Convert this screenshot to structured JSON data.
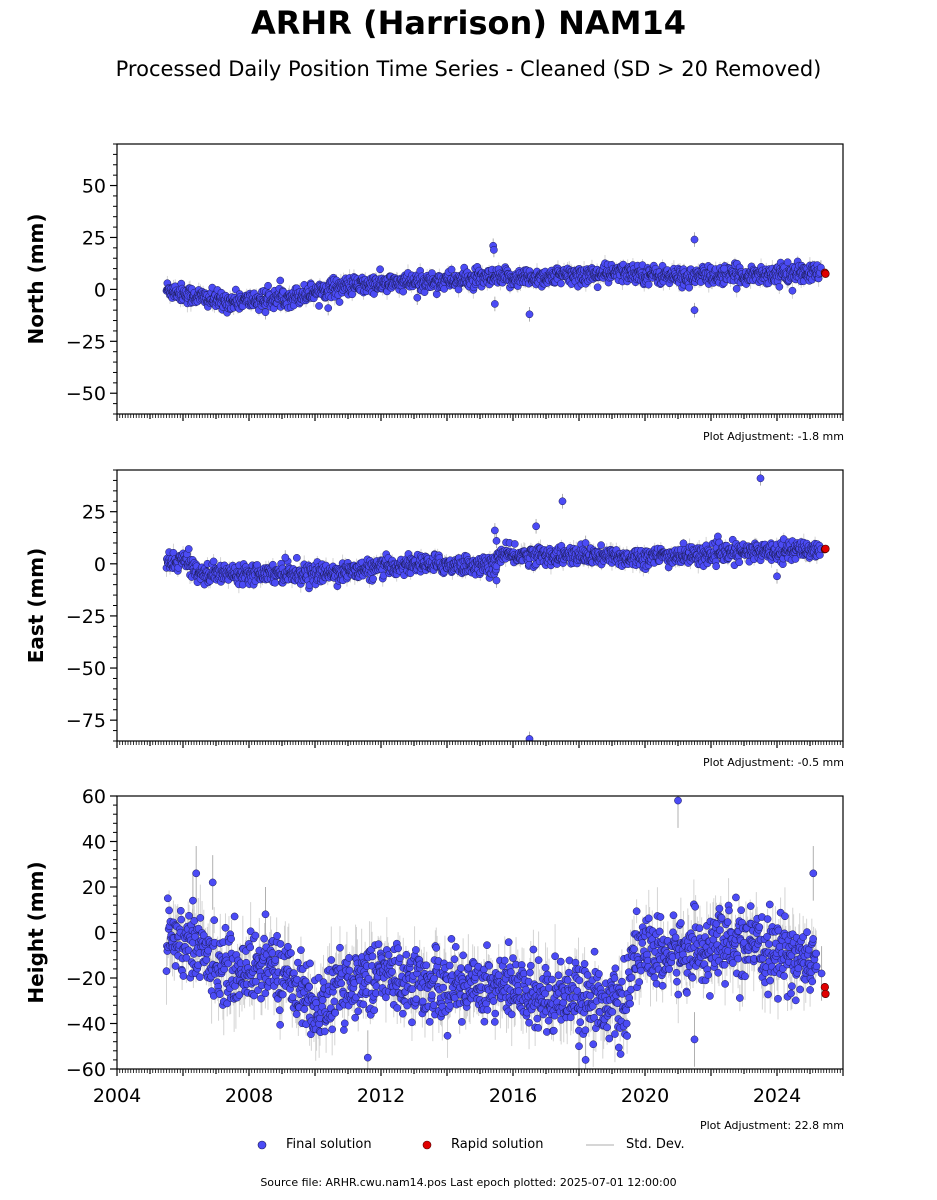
{
  "header": {
    "title": "ARHR (Harrison) NAM14",
    "subtitle": "Processed Daily Position Time Series - Cleaned (SD > 20 Removed)"
  },
  "legend": {
    "final": "Final solution",
    "rapid": "Rapid solution",
    "stddev": "Std. Dev."
  },
  "footer": {
    "text": "Source file: ARHR.cwu.nam14.pos  Last epoch plotted: 2025-07-01 12:00:00"
  },
  "colors": {
    "final": "#4b4bf5",
    "rapid": "#e00000",
    "stddev": "#b0b0b0"
  },
  "chart_data": [
    {
      "type": "scatter",
      "ylabel": "North (mm)",
      "adjustment": "Plot Adjustment: -1.8 mm",
      "ylim": [
        -60,
        70
      ],
      "yticks": [
        -50,
        -25,
        0,
        25,
        50
      ],
      "xlim": [
        2004.0,
        2026.0
      ],
      "show_xtick_labels": false,
      "trend": [
        [
          2005.5,
          0
        ],
        [
          2006.3,
          -3
        ],
        [
          2007.2,
          -6
        ],
        [
          2008.5,
          -5
        ],
        [
          2009.5,
          -3
        ],
        [
          2010.5,
          1
        ],
        [
          2012.5,
          3
        ],
        [
          2015.0,
          5
        ],
        [
          2017.0,
          6
        ],
        [
          2019.5,
          8
        ],
        [
          2021.0,
          6
        ],
        [
          2023.0,
          7
        ],
        [
          2025.3,
          8
        ]
      ],
      "scatter": 2.2,
      "outliers": [
        [
          2015.4,
          21
        ],
        [
          2015.42,
          19
        ],
        [
          2015.45,
          -7
        ],
        [
          2016.5,
          -12
        ],
        [
          2021.5,
          24
        ],
        [
          2021.5,
          -10
        ],
        [
          2010.4,
          -9
        ],
        [
          2008.5,
          -11
        ],
        [
          2013.1,
          -4
        ],
        [
          2022.4,
          10
        ]
      ],
      "rapid": [
        [
          2025.45,
          8
        ],
        [
          2025.47,
          7.5
        ]
      ],
      "last_final": [
        [
          2025.33,
          10.5
        ]
      ]
    },
    {
      "type": "scatter",
      "ylabel": "East (mm)",
      "adjustment": "Plot Adjustment: -0.5 mm",
      "ylim": [
        -85,
        45
      ],
      "yticks": [
        -75,
        -50,
        -25,
        0,
        25
      ],
      "xlim": [
        2004.0,
        2026.0
      ],
      "show_xtick_labels": false,
      "trend": [
        [
          2005.5,
          0
        ],
        [
          2006.0,
          2
        ],
        [
          2006.6,
          -5
        ],
        [
          2008.5,
          -4
        ],
        [
          2010.0,
          -5
        ],
        [
          2011.5,
          -3
        ],
        [
          2013.0,
          0
        ],
        [
          2015.45,
          -1
        ],
        [
          2015.55,
          4
        ],
        [
          2017.5,
          4
        ],
        [
          2019.5,
          3
        ],
        [
          2021.5,
          4
        ],
        [
          2023.5,
          6
        ],
        [
          2025.3,
          7
        ]
      ],
      "scatter": 2.2,
      "outliers": [
        [
          2015.45,
          16
        ],
        [
          2015.5,
          11
        ],
        [
          2015.5,
          -8
        ],
        [
          2016.7,
          18
        ],
        [
          2017.5,
          30
        ],
        [
          2016.5,
          -84
        ],
        [
          2023.5,
          41
        ],
        [
          2024.0,
          -6
        ],
        [
          2009.1,
          3
        ],
        [
          2018.2,
          10
        ]
      ],
      "rapid": [
        [
          2025.45,
          7
        ],
        [
          2025.47,
          7.2
        ]
      ],
      "last_final": [
        [
          2025.33,
          7
        ]
      ]
    },
    {
      "type": "scatter",
      "ylabel": "Height (mm)",
      "adjustment": "Plot Adjustment: 22.8 mm",
      "ylim": [
        -60,
        60
      ],
      "yticks": [
        -60,
        -40,
        -20,
        0,
        20,
        40,
        60
      ],
      "xlim": [
        2004.0,
        2026.0
      ],
      "xticks": [
        2004,
        2008,
        2012,
        2016,
        2020,
        2024
      ],
      "show_xtick_labels": true,
      "trend": [
        [
          2005.5,
          0
        ],
        [
          2006.5,
          -8
        ],
        [
          2007.5,
          -18
        ],
        [
          2008.5,
          -14
        ],
        [
          2009.5,
          -22
        ],
        [
          2010.0,
          -35
        ],
        [
          2010.5,
          -28
        ],
        [
          2011.0,
          -22
        ],
        [
          2012.0,
          -18
        ],
        [
          2013.0,
          -22
        ],
        [
          2014.0,
          -24
        ],
        [
          2015.0,
          -22
        ],
        [
          2016.0,
          -25
        ],
        [
          2017.0,
          -28
        ],
        [
          2018.0,
          -26
        ],
        [
          2019.0,
          -32
        ],
        [
          2019.5,
          -35
        ],
        [
          2019.6,
          -8
        ],
        [
          2020.5,
          -10
        ],
        [
          2021.5,
          -8
        ],
        [
          2022.5,
          -5
        ],
        [
          2023.5,
          -8
        ],
        [
          2024.5,
          -10
        ],
        [
          2025.2,
          -15
        ]
      ],
      "scatter": 7.5,
      "outliers": [
        [
          2006.4,
          26
        ],
        [
          2006.9,
          22
        ],
        [
          2021.0,
          58
        ],
        [
          2021.5,
          -47
        ],
        [
          2025.1,
          26
        ],
        [
          2011.6,
          -55
        ],
        [
          2018.2,
          -56
        ],
        [
          2018.0,
          -50
        ],
        [
          2008.5,
          8
        ],
        [
          2006.3,
          14
        ]
      ],
      "rapid": [
        [
          2025.45,
          -24
        ],
        [
          2025.47,
          -27
        ]
      ],
      "last_final": [
        [
          2025.35,
          -18
        ]
      ]
    }
  ]
}
